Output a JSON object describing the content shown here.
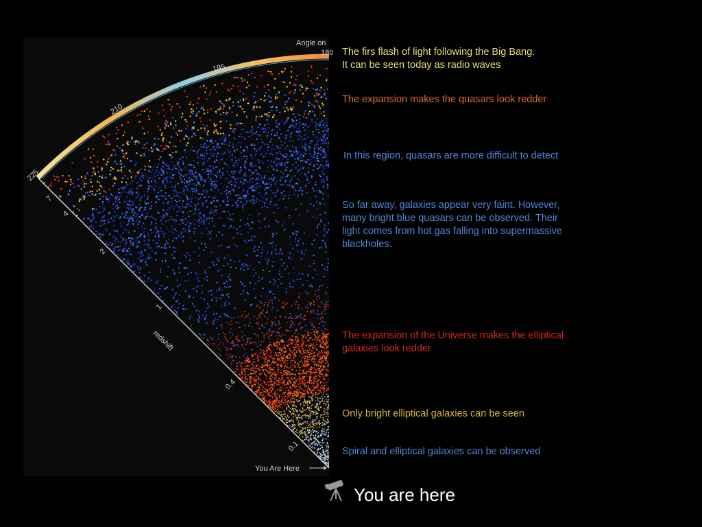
{
  "figure": {
    "angle_label": "Angle on",
    "angle_value": "180",
    "angle_ticks": [
      "195",
      "210",
      "225"
    ],
    "redshift_ticks": [
      "7",
      "4",
      "2",
      "1",
      "0.4",
      "0.1"
    ],
    "axis_label": "redshift",
    "you_are_here_small": "You Are Here"
  },
  "notes": [
    {
      "lines": [
        "The firs flash of light following the Big Bang.",
        "It can be seen today as radio waves"
      ],
      "color": "#e9e07a"
    },
    {
      "lines": [
        "The expansion makes the quasars look redder"
      ],
      "color": "#e0682e"
    },
    {
      "lines": [
        "In this region, quasars are more difficult to detect"
      ],
      "color": "#4f86d8"
    },
    {
      "lines": [
        "So far away, galaxies appear very faint. However,",
        "many bright blue quasars can be observed. Their",
        "light comes from hot gas falling into supermassive",
        "blackholes."
      ],
      "color": "#4f86d8"
    },
    {
      "lines": [
        "The expansion of the Universe makes the elliptical",
        "galaxies look redder"
      ],
      "color": "#d62b1c"
    },
    {
      "lines": [
        "Only bright elliptical galaxies can be seen"
      ],
      "color": "#d9b33a"
    },
    {
      "lines": [
        "Spiral and elliptical galaxies can be observed"
      ],
      "color": "#4f86d8"
    }
  ],
  "footer": {
    "you_are_here": "You are here",
    "icon": "telescope-icon"
  }
}
